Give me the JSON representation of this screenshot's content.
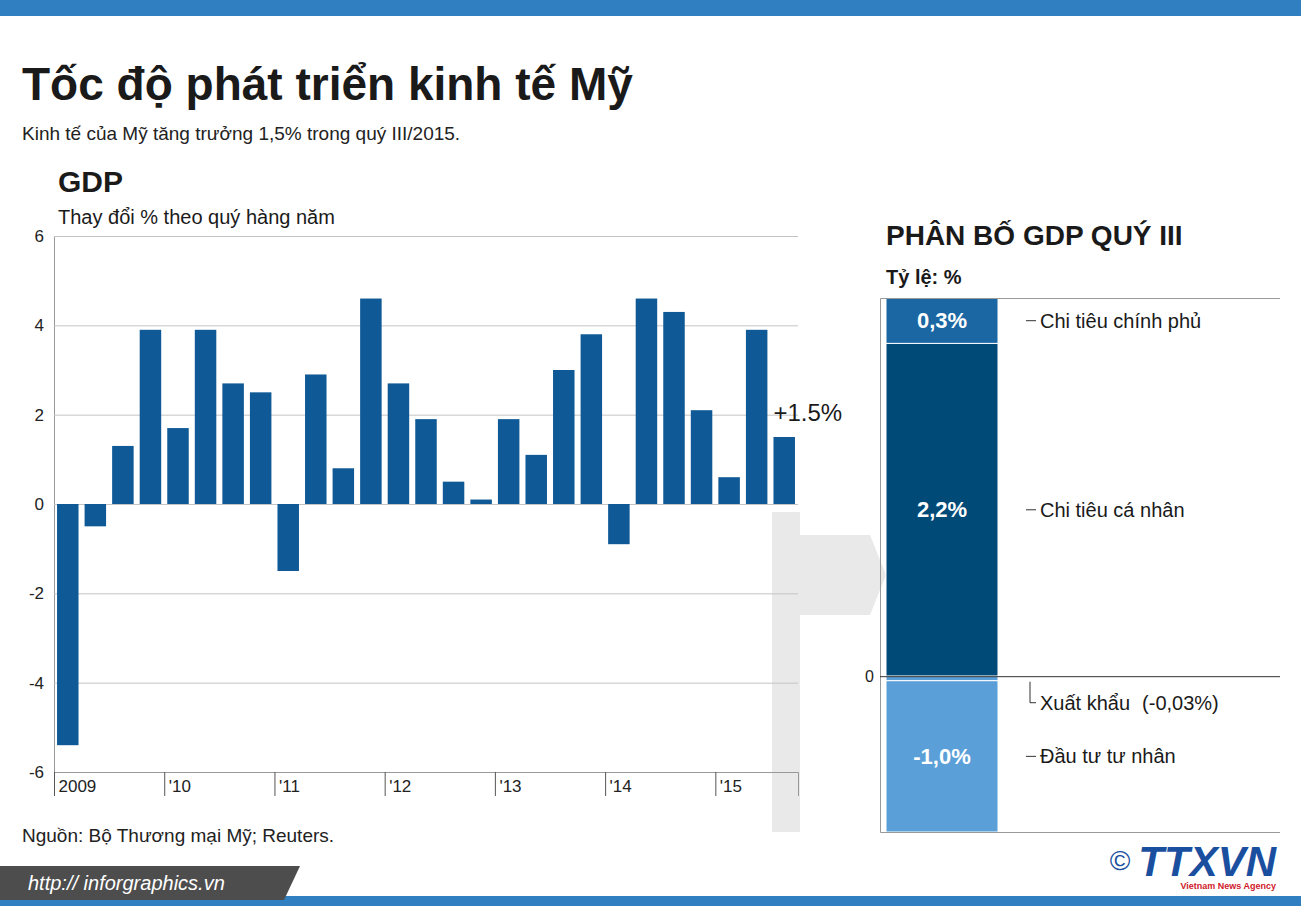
{
  "page": {
    "title": "Tốc độ phát triển kinh tế Mỹ",
    "subtitle": "Kinh tế của Mỹ tăng trưởng 1,5% trong quý III/2015.",
    "source": "Nguồn: Bộ Thương mại Mỹ; Reuters.",
    "url": "http:// inforgraphics.vn",
    "copyright": "©",
    "logo": "TTXVN",
    "logo_sub": "Vietnam News Agency"
  },
  "chart_data": [
    {
      "type": "bar",
      "title": "GDP",
      "y_label": "Thay đổi % theo quý hàng năm",
      "categories": [
        "2009",
        null,
        null,
        null,
        "'10",
        null,
        null,
        null,
        "'11",
        null,
        null,
        null,
        "'12",
        null,
        null,
        null,
        "'13",
        null,
        null,
        null,
        "'14",
        null,
        null,
        null,
        "'15",
        null,
        null
      ],
      "values": [
        -5.4,
        -0.5,
        1.3,
        3.9,
        1.7,
        3.9,
        2.7,
        2.5,
        -1.5,
        2.9,
        0.8,
        4.6,
        2.7,
        1.9,
        0.5,
        0.1,
        1.9,
        1.1,
        3.0,
        3.8,
        -0.9,
        4.6,
        4.3,
        2.1,
        0.6,
        3.9,
        1.5
      ],
      "color": "#0f5a96",
      "ylim": [
        -6,
        6
      ],
      "yticks": [
        -6,
        -4,
        -2,
        0,
        2,
        4,
        6
      ],
      "grid": true,
      "annotation": "+1.5%"
    },
    {
      "type": "bar",
      "stacked": true,
      "title": "PHÂN BỐ GDP QUÝ III",
      "y_label": "Tỷ lệ: %",
      "categories": [
        null
      ],
      "series": [
        {
          "name": "Chi tiêu cá nhân",
          "color": "#004a78",
          "values": [
            2.2
          ],
          "value_labels": [
            "2,2%"
          ]
        },
        {
          "name": "Chi tiêu chính phủ",
          "color": "#1b67a3",
          "values": [
            0.3
          ],
          "value_labels": [
            "0,3%"
          ]
        },
        {
          "name": "Xuất khẩu",
          "color": "#5b9fd8",
          "values": [
            -0.03
          ],
          "value_labels": [
            "(-0,03%)"
          ]
        },
        {
          "name": "Đầu tư tư nhân",
          "color": "#5b9fd8",
          "values": [
            -1.0
          ],
          "value_labels": [
            "-1,0%"
          ]
        }
      ],
      "ylim": [
        -1.03,
        2.5
      ],
      "yticks": [
        0
      ],
      "data_labels": true
    }
  ]
}
